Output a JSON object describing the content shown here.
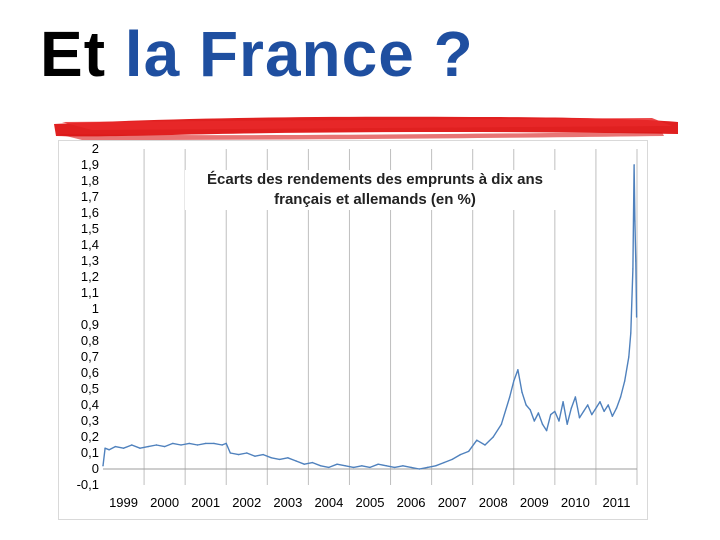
{
  "slide": {
    "title_part1": "Et",
    "title_part2": "la France",
    "title_part3": "?",
    "colors": {
      "title_black": "#000000",
      "title_blue": "#1f4fa0",
      "underline_red": "#e02020"
    }
  },
  "chart_data": {
    "type": "line",
    "title_line1": "Écarts des rendements des emprunts à dix ans",
    "title_line2": "français et allemands (en %)",
    "xlabel": "",
    "ylabel": "",
    "ylim": [
      -0.1,
      2
    ],
    "xlim": [
      1999,
      2012
    ],
    "y_ticks": [
      "2",
      "1,9",
      "1,8",
      "1,7",
      "1,6",
      "1,5",
      "1,4",
      "1,3",
      "1,2",
      "1,1",
      "1",
      "0,9",
      "0,8",
      "0,7",
      "0,6",
      "0,5",
      "0,4",
      "0,3",
      "0,2",
      "0,1",
      "0",
      "-0,1"
    ],
    "x_ticks": [
      "1999",
      "2000",
      "2001",
      "2002",
      "2003",
      "2004",
      "2005",
      "2006",
      "2007",
      "2008",
      "2009",
      "2010",
      "2011"
    ],
    "grid": "vertical",
    "line_color": "#4f81bd",
    "series": [
      {
        "x": [
          1999.0,
          1999.05,
          1999.15,
          1999.3,
          1999.5,
          1999.7,
          1999.9,
          2000.1,
          2000.3,
          2000.5,
          2000.7,
          2000.9,
          2001.1,
          2001.3,
          2001.5,
          2001.7,
          2001.9,
          2002.0,
          2002.1,
          2002.3,
          2002.5,
          2002.7,
          2002.9,
          2003.1,
          2003.3,
          2003.5,
          2003.7,
          2003.9,
          2004.1,
          2004.3,
          2004.5,
          2004.7,
          2004.9,
          2005.1,
          2005.3,
          2005.5,
          2005.7,
          2005.9,
          2006.1,
          2006.3,
          2006.5,
          2006.7,
          2006.9,
          2007.1,
          2007.3,
          2007.5,
          2007.7,
          2007.9,
          2008.1,
          2008.3,
          2008.5,
          2008.7,
          2008.9,
          2009.0,
          2009.1,
          2009.2,
          2009.3,
          2009.4,
          2009.5,
          2009.6,
          2009.7,
          2009.8,
          2009.9,
          2010.0,
          2010.1,
          2010.2,
          2010.3,
          2010.4,
          2010.5,
          2010.6,
          2010.7,
          2010.8,
          2010.9,
          2011.0,
          2011.1,
          2011.2,
          2011.3,
          2011.4,
          2011.5,
          2011.6,
          2011.7,
          2011.8,
          2011.85,
          2011.9,
          2011.93,
          2011.95,
          2011.97,
          2011.99
        ],
        "values": [
          0.02,
          0.13,
          0.12,
          0.14,
          0.13,
          0.15,
          0.13,
          0.14,
          0.15,
          0.14,
          0.16,
          0.15,
          0.16,
          0.15,
          0.16,
          0.16,
          0.15,
          0.16,
          0.1,
          0.09,
          0.1,
          0.08,
          0.09,
          0.07,
          0.06,
          0.07,
          0.05,
          0.03,
          0.04,
          0.02,
          0.01,
          0.03,
          0.02,
          0.01,
          0.02,
          0.01,
          0.03,
          0.02,
          0.01,
          0.02,
          0.01,
          0.0,
          0.01,
          0.02,
          0.04,
          0.06,
          0.09,
          0.11,
          0.18,
          0.15,
          0.2,
          0.28,
          0.45,
          0.55,
          0.62,
          0.48,
          0.4,
          0.37,
          0.3,
          0.35,
          0.28,
          0.24,
          0.34,
          0.36,
          0.3,
          0.42,
          0.28,
          0.38,
          0.45,
          0.32,
          0.36,
          0.4,
          0.34,
          0.38,
          0.42,
          0.36,
          0.4,
          0.33,
          0.38,
          0.45,
          0.55,
          0.7,
          0.85,
          1.25,
          1.9,
          1.55,
          1.3,
          0.95
        ]
      }
    ]
  }
}
